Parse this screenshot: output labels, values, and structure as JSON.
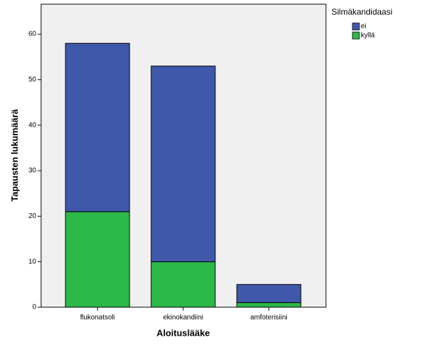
{
  "chart_data": {
    "type": "stacked-bar",
    "x_label": "Aloituslääke",
    "y_label": "Tapausten lukumäärä",
    "legend_title": "Silmäkandidaasi",
    "categories": [
      "flukonatsoli",
      "ekinokandiini",
      "amfoterisiini"
    ],
    "series": [
      {
        "name": "ei",
        "color": "#3f58aa",
        "values": [
          37,
          43,
          4
        ]
      },
      {
        "name": "kyllä",
        "color": "#2db84a",
        "values": [
          21,
          10,
          1
        ]
      }
    ],
    "ylim": [
      0,
      66.6
    ],
    "yticks": [
      0,
      10,
      20,
      30,
      40,
      50,
      60
    ],
    "legend": "right"
  }
}
